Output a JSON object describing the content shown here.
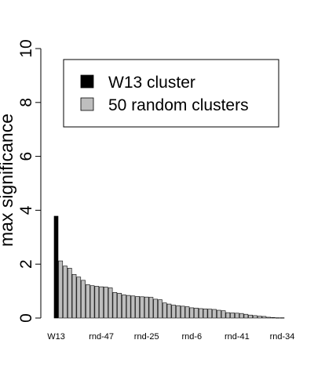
{
  "chart_data": {
    "type": "bar",
    "ylabel": "max significance",
    "ylim": [
      0,
      10
    ],
    "y_ticks": [
      0,
      2,
      4,
      6,
      8,
      10
    ],
    "legend": {
      "placement": "top-right",
      "entries": [
        {
          "label": "W13 cluster",
          "color": "#000000"
        },
        {
          "label": "50 random clusters",
          "color": "#bebebe"
        }
      ]
    },
    "x_tick_labels": [
      {
        "label": "W13",
        "index": 0
      },
      {
        "label": "rnd-47",
        "index": 10
      },
      {
        "label": "rnd-25",
        "index": 20
      },
      {
        "label": "rnd-6",
        "index": 30
      },
      {
        "label": "rnd-41",
        "index": 40
      },
      {
        "label": "rnd-34",
        "index": 50
      }
    ],
    "series": [
      {
        "legend_entry": 0,
        "color": "#000000",
        "values": [
          3.78
        ]
      },
      {
        "legend_entry": 1,
        "color": "#bebebe",
        "values": [
          2.12,
          1.93,
          1.85,
          1.62,
          1.52,
          1.4,
          1.24,
          1.2,
          1.18,
          1.16,
          1.15,
          1.12,
          0.95,
          0.92,
          0.86,
          0.84,
          0.82,
          0.8,
          0.79,
          0.78,
          0.77,
          0.7,
          0.68,
          0.56,
          0.52,
          0.48,
          0.46,
          0.44,
          0.42,
          0.38,
          0.37,
          0.35,
          0.34,
          0.33,
          0.32,
          0.29,
          0.27,
          0.2,
          0.19,
          0.18,
          0.17,
          0.14,
          0.11,
          0.09,
          0.07,
          0.06,
          0.03,
          0.02,
          0.01,
          0.01
        ]
      }
    ],
    "grid": false,
    "style": {
      "bar_border": "#000000"
    }
  }
}
